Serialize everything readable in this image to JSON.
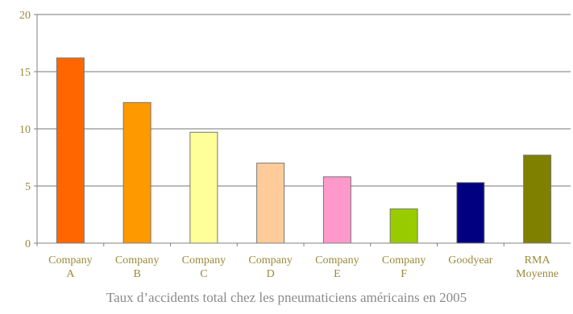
{
  "chart_data": {
    "type": "bar",
    "categories": [
      [
        "Company",
        "A"
      ],
      [
        "Company",
        "B"
      ],
      [
        "Company",
        "C"
      ],
      [
        "Company",
        "D"
      ],
      [
        "Company",
        "E"
      ],
      [
        "Company",
        "F"
      ],
      [
        "Goodyear"
      ],
      [
        "RMA",
        "Moyenne"
      ]
    ],
    "values": [
      16.2,
      12.3,
      9.7,
      7.0,
      5.8,
      3.0,
      5.3,
      7.7
    ],
    "bar_colors": [
      "#ff6600",
      "#ff9900",
      "#ffff99",
      "#ffcc99",
      "#ff99cc",
      "#99cc00",
      "#000080",
      "#808000"
    ],
    "ylim": [
      0,
      20
    ],
    "yticks": [
      0,
      5,
      10,
      15,
      20
    ],
    "grid": true,
    "caption": "Taux d’accidents total chez les pneumaticiens américains en 2005"
  }
}
